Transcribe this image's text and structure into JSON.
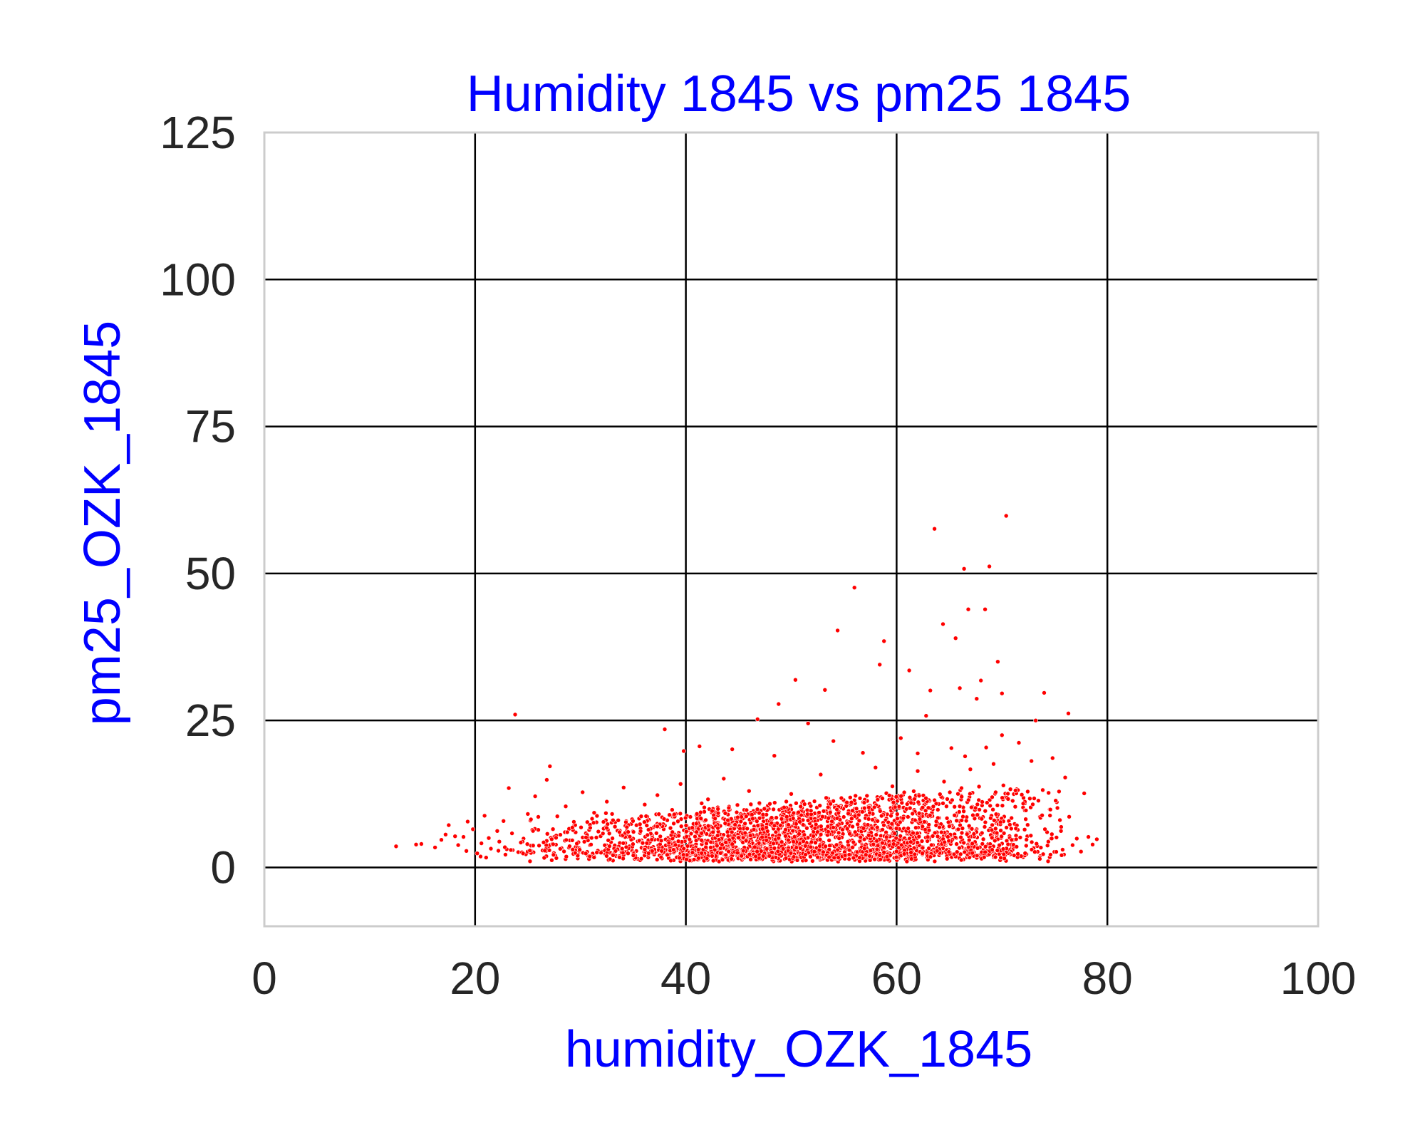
{
  "chart_data": {
    "type": "scatter",
    "title": "Humidity 1845 vs pm25 1845",
    "xlabel": "humidity_OZK_1845",
    "ylabel": "pm25_OZK_1845",
    "xlim": [
      0,
      100
    ],
    "ylim": [
      -10,
      125
    ],
    "x_ticks": [
      0,
      20,
      40,
      60,
      80,
      100
    ],
    "y_ticks": [
      0,
      25,
      50,
      75,
      100,
      125
    ],
    "grid": true,
    "legend": "none",
    "colors": {
      "points": "#ff0000",
      "title": "#0000ff",
      "axis_labels": "#0000ff",
      "grid": "#000000",
      "frame": "#cccccc"
    },
    "series": [
      {
        "points": [
          [
            12.5,
            3.6
          ],
          [
            14.4,
            3.9
          ],
          [
            14.9,
            4.0
          ],
          [
            16.2,
            3.4
          ],
          [
            16.8,
            4.7
          ],
          [
            17.2,
            5.6
          ],
          [
            17.5,
            7.2
          ],
          [
            18.1,
            5.3
          ],
          [
            18.4,
            3.8
          ],
          [
            18.9,
            5.2
          ],
          [
            19.3,
            7.8
          ],
          [
            19.8,
            6.5
          ],
          [
            20.2,
            2.4
          ],
          [
            20.6,
            4.1
          ],
          [
            20.9,
            8.8
          ],
          [
            21.3,
            5.0
          ],
          [
            21.5,
            3.2
          ],
          [
            22.1,
            6.2
          ],
          [
            22.3,
            4.4
          ],
          [
            22.7,
            7.9
          ],
          [
            23.0,
            3.1
          ],
          [
            23.2,
            13.5
          ],
          [
            23.5,
            5.8
          ],
          [
            23.8,
            26.0
          ],
          [
            24.1,
            2.6
          ],
          [
            24.6,
            4.9
          ],
          [
            25.0,
            9.1
          ],
          [
            25.3,
            3.7
          ],
          [
            25.7,
            12.1
          ],
          [
            26.0,
            6.4
          ],
          [
            26.4,
            2.9
          ],
          [
            26.8,
            14.9
          ],
          [
            27.1,
            17.2
          ],
          [
            27.5,
            5.2
          ],
          [
            27.8,
            8.7
          ],
          [
            28.2,
            3.3
          ],
          [
            28.6,
            10.4
          ],
          [
            29.0,
            4.6
          ],
          [
            29.4,
            7.1
          ],
          [
            29.8,
            2.5
          ],
          [
            30.2,
            12.8
          ],
          [
            30.5,
            5.9
          ],
          [
            30.9,
            3.8
          ],
          [
            31.3,
            9.3
          ],
          [
            31.7,
            6.1
          ],
          [
            32.1,
            2.7
          ],
          [
            32.5,
            11.2
          ],
          [
            32.9,
            4.3
          ],
          [
            33.3,
            7.7
          ],
          [
            33.7,
            3.1
          ],
          [
            34.1,
            13.6
          ],
          [
            34.5,
            5.4
          ],
          [
            34.9,
            8.2
          ],
          [
            35.3,
            2.8
          ],
          [
            35.7,
            6.6
          ],
          [
            36.1,
            10.7
          ],
          [
            36.5,
            4.1
          ],
          [
            36.9,
            3.5
          ],
          [
            37.3,
            12.3
          ],
          [
            37.6,
            7.4
          ],
          [
            38.0,
            23.5
          ],
          [
            38.3,
            5.0
          ],
          [
            38.7,
            9.8
          ],
          [
            39.1,
            2.9
          ],
          [
            39.5,
            14.2
          ],
          [
            39.8,
            19.8
          ],
          [
            40.2,
            6.3
          ],
          [
            40.6,
            3.7
          ],
          [
            41.0,
            8.9
          ],
          [
            41.3,
            20.6
          ],
          [
            41.7,
            4.5
          ],
          [
            42.1,
            11.6
          ],
          [
            42.5,
            2.6
          ],
          [
            42.9,
            7.0
          ],
          [
            43.3,
            5.6
          ],
          [
            43.6,
            15.1
          ],
          [
            44.0,
            3.4
          ],
          [
            44.4,
            20.1
          ],
          [
            44.8,
            9.4
          ],
          [
            45.2,
            4.8
          ],
          [
            45.6,
            6.8
          ],
          [
            46.0,
            13.0
          ],
          [
            46.4,
            2.7
          ],
          [
            46.8,
            25.2
          ],
          [
            47.2,
            5.1
          ],
          [
            47.6,
            10.1
          ],
          [
            48.0,
            3.6
          ],
          [
            48.4,
            19.0
          ],
          [
            48.8,
            27.8
          ],
          [
            49.2,
            7.9
          ],
          [
            49.6,
            4.2
          ],
          [
            50.0,
            12.5
          ],
          [
            50.4,
            31.9
          ],
          [
            50.8,
            5.7
          ],
          [
            51.2,
            3.0
          ],
          [
            51.6,
            24.5
          ],
          [
            52.0,
            9.0
          ],
          [
            52.4,
            6.1
          ],
          [
            52.8,
            15.8
          ],
          [
            53.2,
            30.2
          ],
          [
            53.6,
            4.6
          ],
          [
            54.0,
            21.5
          ],
          [
            54.4,
            40.3
          ],
          [
            54.8,
            7.5
          ],
          [
            55.2,
            3.3
          ],
          [
            55.6,
            11.9
          ],
          [
            56.0,
            47.6
          ],
          [
            56.4,
            5.4
          ],
          [
            56.8,
            19.5
          ],
          [
            57.2,
            8.4
          ],
          [
            57.6,
            4.0
          ],
          [
            58.0,
            17.0
          ],
          [
            58.4,
            34.5
          ],
          [
            58.8,
            38.5
          ],
          [
            59.2,
            6.9
          ],
          [
            59.6,
            13.8
          ],
          [
            60.0,
            4.8
          ],
          [
            60.4,
            22.0
          ],
          [
            60.8,
            9.6
          ],
          [
            61.2,
            33.5
          ],
          [
            61.6,
            5.2
          ],
          [
            62.0,
            16.4
          ],
          [
            62.4,
            7.8
          ],
          [
            62.8,
            25.8
          ],
          [
            63.2,
            30.1
          ],
          [
            63.6,
            57.6
          ],
          [
            64.0,
            10.8
          ],
          [
            64.4,
            41.4
          ],
          [
            64.8,
            6.0
          ],
          [
            65.2,
            20.3
          ],
          [
            65.6,
            39.0
          ],
          [
            66.0,
            30.5
          ],
          [
            66.4,
            50.8
          ],
          [
            66.8,
            43.9
          ],
          [
            67.2,
            12.7
          ],
          [
            67.6,
            28.7
          ],
          [
            68.0,
            31.8
          ],
          [
            68.4,
            43.9
          ],
          [
            68.8,
            51.2
          ],
          [
            69.2,
            17.6
          ],
          [
            69.6,
            35.0
          ],
          [
            70.0,
            29.6
          ],
          [
            70.4,
            59.8
          ],
          [
            70.8,
            13.3
          ],
          [
            71.2,
            7.4
          ],
          [
            71.6,
            21.2
          ],
          [
            72.0,
            10.2
          ],
          [
            72.4,
            5.3
          ],
          [
            72.8,
            18.1
          ],
          [
            73.2,
            25.0
          ],
          [
            73.6,
            8.6
          ],
          [
            74.0,
            29.7
          ],
          [
            74.4,
            4.4
          ],
          [
            74.8,
            18.6
          ],
          [
            75.2,
            11.1
          ],
          [
            75.6,
            6.2
          ],
          [
            76.0,
            15.3
          ],
          [
            76.3,
            26.2
          ],
          [
            76.7,
            3.8
          ],
          [
            77.1,
            4.9
          ],
          [
            77.5,
            2.7
          ],
          [
            77.8,
            12.6
          ],
          [
            78.2,
            5.2
          ],
          [
            78.6,
            3.9
          ],
          [
            79.0,
            4.8
          ],
          [
            37.0,
            2.2
          ],
          [
            40.5,
            2.8
          ],
          [
            45.0,
            3.1
          ],
          [
            48.5,
            2.4
          ],
          [
            52.5,
            2.9
          ],
          [
            55.5,
            3.2
          ],
          [
            59.0,
            2.6
          ],
          [
            62.5,
            3.5
          ],
          [
            65.0,
            2.3
          ],
          [
            67.5,
            3.9
          ],
          [
            70.5,
            2.7
          ],
          [
            73.0,
            3.3
          ],
          [
            63.0,
            6.8
          ],
          [
            66.0,
            7.9
          ],
          [
            69.0,
            8.8
          ],
          [
            71.5,
            6.4
          ],
          [
            61.0,
            5.7
          ],
          [
            58.5,
            6.3
          ],
          [
            54.5,
            5.9
          ],
          [
            50.5,
            4.7
          ],
          [
            46.5,
            5.3
          ],
          [
            43.0,
            4.4
          ],
          [
            39.0,
            5.6
          ],
          [
            35.0,
            4.9
          ],
          [
            31.0,
            3.9
          ],
          [
            27.0,
            3.6
          ],
          [
            24.5,
            4.4
          ],
          [
            66.5,
            18.9
          ],
          [
            68.5,
            20.4
          ],
          [
            70.0,
            22.5
          ],
          [
            67.0,
            16.7
          ],
          [
            64.5,
            14.6
          ],
          [
            62.0,
            19.4
          ],
          [
            60.5,
            12.1
          ],
          [
            57.5,
            10.5
          ],
          [
            53.5,
            11.7
          ],
          [
            49.5,
            9.6
          ],
          [
            45.5,
            8.4
          ],
          [
            41.5,
            10.9
          ],
          [
            36.5,
            8.1
          ],
          [
            33.0,
            9.1
          ],
          [
            29.5,
            7.2
          ],
          [
            26.0,
            8.6
          ]
        ]
      }
    ]
  }
}
